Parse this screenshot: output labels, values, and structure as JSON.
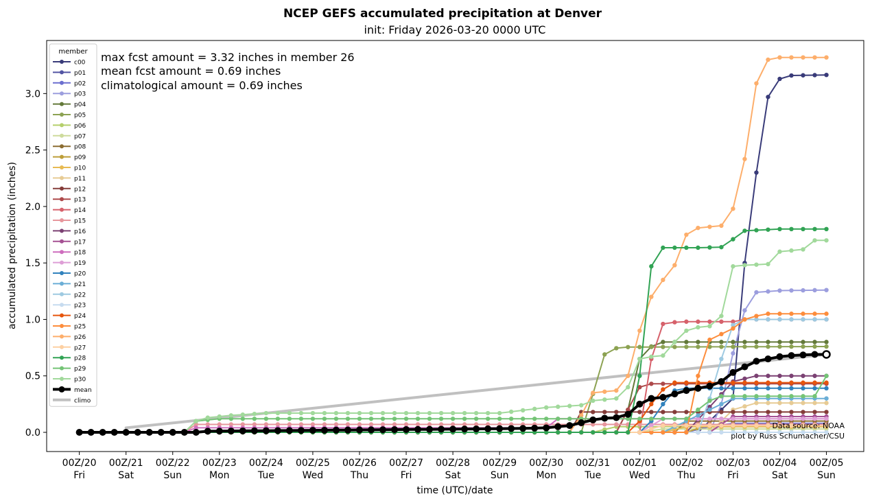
{
  "chart_data": {
    "type": "line",
    "title": "NCEP GEFS accumulated precipitation at Denver",
    "subtitle": "init: Friday 2026-03-20 0000 UTC",
    "xlabel": "time (UTC)/date",
    "ylabel": "accumulated precipitation (inches)",
    "x_unit": "days after 2026-03-20 00Z",
    "xlim": [
      -0.7,
      16.8
    ],
    "ylim": [
      -0.17,
      3.47
    ],
    "x_ticks": [
      {
        "top": "00Z/20",
        "bottom": "Fri"
      },
      {
        "top": "00Z/21",
        "bottom": "Sat"
      },
      {
        "top": "00Z/22",
        "bottom": "Sun"
      },
      {
        "top": "00Z/23",
        "bottom": "Mon"
      },
      {
        "top": "00Z/24",
        "bottom": "Tue"
      },
      {
        "top": "00Z/25",
        "bottom": "Wed"
      },
      {
        "top": "00Z/26",
        "bottom": "Thu"
      },
      {
        "top": "00Z/27",
        "bottom": "Fri"
      },
      {
        "top": "00Z/28",
        "bottom": "Sat"
      },
      {
        "top": "00Z/29",
        "bottom": "Sun"
      },
      {
        "top": "00Z/30",
        "bottom": "Mon"
      },
      {
        "top": "00Z/31",
        "bottom": "Tue"
      },
      {
        "top": "00Z/01",
        "bottom": "Wed"
      },
      {
        "top": "00Z/02",
        "bottom": "Thu"
      },
      {
        "top": "00Z/03",
        "bottom": "Fri"
      },
      {
        "top": "00Z/04",
        "bottom": "Sat"
      },
      {
        "top": "00Z/05",
        "bottom": "Sun"
      }
    ],
    "y_ticks": [
      "0.0",
      "0.5",
      "1.0",
      "1.5",
      "2.0",
      "2.5",
      "3.0"
    ],
    "y_tick_values": [
      0,
      0.5,
      1.0,
      1.5,
      2.0,
      2.5,
      3.0
    ],
    "step_days": 0.25,
    "legend": {
      "title": "member",
      "placement": "upper left"
    },
    "annotations": [
      "max fcst amount = 3.32 inches in member 26",
      "mean fcst amount = 0.69 inches",
      "climatological amount = 0.69 inches"
    ],
    "credits": [
      "Data source: NOAA",
      "plot by Russ Schumacher/CSU"
    ],
    "series": [
      {
        "name": "c00",
        "color": "#393b79",
        "knots": [
          [
            0,
            0
          ],
          [
            13.25,
            0
          ],
          [
            14,
            0.3
          ],
          [
            14.25,
            1.5
          ],
          [
            14.5,
            2.3
          ],
          [
            14.75,
            2.97
          ],
          [
            15,
            3.13
          ],
          [
            15.25,
            3.16
          ],
          [
            16,
            3.165
          ]
        ]
      },
      {
        "name": "p01",
        "color": "#5254a3",
        "knots": [
          [
            0,
            0
          ],
          [
            12.5,
            0
          ],
          [
            13,
            0.05
          ],
          [
            16,
            0.05
          ]
        ]
      },
      {
        "name": "p02",
        "color": "#6b6ecf",
        "knots": [
          [
            0,
            0
          ],
          [
            13,
            0
          ],
          [
            13.5,
            0.05
          ],
          [
            14,
            0.08
          ],
          [
            16,
            0.08
          ]
        ]
      },
      {
        "name": "p03",
        "color": "#9c9ede",
        "knots": [
          [
            0,
            0
          ],
          [
            13.5,
            0
          ],
          [
            13.75,
            0.25
          ],
          [
            14,
            0.7
          ],
          [
            14.25,
            1.08
          ],
          [
            14.5,
            1.24
          ],
          [
            15,
            1.255
          ],
          [
            16,
            1.26
          ]
        ]
      },
      {
        "name": "p04",
        "color": "#637939",
        "knots": [
          [
            0,
            0
          ],
          [
            11.5,
            0
          ],
          [
            11.75,
            0.2
          ],
          [
            12,
            0.65
          ],
          [
            12.25,
            0.76
          ],
          [
            12.5,
            0.8
          ],
          [
            16,
            0.8
          ]
        ]
      },
      {
        "name": "p05",
        "color": "#8ca252",
        "knots": [
          [
            0,
            0
          ],
          [
            10.75,
            0
          ],
          [
            11,
            0.34
          ],
          [
            11.25,
            0.69
          ],
          [
            11.5,
            0.745
          ],
          [
            11.75,
            0.755
          ],
          [
            16,
            0.76
          ]
        ]
      },
      {
        "name": "p06",
        "color": "#b5cf6b",
        "knots": [
          [
            0,
            0
          ],
          [
            11,
            0
          ],
          [
            11.5,
            0.05
          ],
          [
            16,
            0.05
          ]
        ]
      },
      {
        "name": "p07",
        "color": "#cedb9c",
        "knots": [
          [
            0,
            0
          ],
          [
            12,
            0
          ],
          [
            12.5,
            0.03
          ],
          [
            16,
            0.03
          ]
        ]
      },
      {
        "name": "p08",
        "color": "#8c6d31",
        "knots": [
          [
            0,
            0
          ],
          [
            12.75,
            0
          ],
          [
            13,
            0.1
          ],
          [
            16,
            0.1
          ]
        ]
      },
      {
        "name": "p09",
        "color": "#bd9e39",
        "knots": [
          [
            0,
            0
          ],
          [
            13,
            0
          ],
          [
            13.5,
            0.07
          ],
          [
            16,
            0.07
          ]
        ]
      },
      {
        "name": "p10",
        "color": "#e7ba52",
        "knots": [
          [
            0,
            0
          ],
          [
            12.5,
            0
          ],
          [
            13,
            0.05
          ],
          [
            16,
            0.05
          ]
        ]
      },
      {
        "name": "p11",
        "color": "#e7cb94",
        "knots": [
          [
            0,
            0
          ],
          [
            13.5,
            0
          ],
          [
            14,
            0.2
          ],
          [
            14.5,
            0.26
          ],
          [
            16,
            0.26
          ]
        ]
      },
      {
        "name": "p12",
        "color": "#843c39",
        "knots": [
          [
            0,
            0
          ],
          [
            10.5,
            0
          ],
          [
            10.75,
            0.18
          ],
          [
            16,
            0.18
          ]
        ]
      },
      {
        "name": "p13",
        "color": "#ad494a",
        "knots": [
          [
            0,
            0
          ],
          [
            11.5,
            0
          ],
          [
            12,
            0.4
          ],
          [
            12.25,
            0.43
          ],
          [
            16,
            0.43
          ]
        ]
      },
      {
        "name": "p14",
        "color": "#d6616b",
        "knots": [
          [
            0,
            0
          ],
          [
            12,
            0
          ],
          [
            12.25,
            0.65
          ],
          [
            12.5,
            0.96
          ],
          [
            12.75,
            0.975
          ],
          [
            13,
            0.98
          ],
          [
            14,
            0.98
          ],
          [
            14.25,
            1.0
          ],
          [
            16,
            1.0
          ]
        ]
      },
      {
        "name": "p15",
        "color": "#e7969c",
        "knots": [
          [
            0,
            0
          ],
          [
            2.25,
            0
          ],
          [
            2.5,
            0.07
          ],
          [
            16,
            0.07
          ]
        ]
      },
      {
        "name": "p16",
        "color": "#7b4173",
        "knots": [
          [
            0,
            0
          ],
          [
            13,
            0
          ],
          [
            14,
            0.45
          ],
          [
            14.5,
            0.5
          ],
          [
            16,
            0.5
          ]
        ]
      },
      {
        "name": "p17",
        "color": "#a55194",
        "knots": [
          [
            0,
            0
          ],
          [
            13.5,
            0
          ],
          [
            14,
            0.14
          ],
          [
            16,
            0.14
          ]
        ]
      },
      {
        "name": "p18",
        "color": "#ce6dbd",
        "knots": [
          [
            0,
            0
          ],
          [
            2.25,
            0
          ],
          [
            2.5,
            0.04
          ],
          [
            10,
            0.04
          ],
          [
            10.25,
            0.12
          ],
          [
            16,
            0.12
          ]
        ]
      },
      {
        "name": "p19",
        "color": "#de9ed6",
        "knots": [
          [
            0,
            0
          ],
          [
            12,
            0
          ],
          [
            12.5,
            0.12
          ],
          [
            16,
            0.12
          ]
        ]
      },
      {
        "name": "p20",
        "color": "#3182bd",
        "knots": [
          [
            0,
            0
          ],
          [
            12,
            0
          ],
          [
            12.25,
            0.1
          ],
          [
            12.5,
            0.25
          ],
          [
            12.75,
            0.37
          ],
          [
            13,
            0.39
          ],
          [
            14,
            0.39
          ],
          [
            16,
            0.39
          ]
        ]
      },
      {
        "name": "p21",
        "color": "#6baed6",
        "knots": [
          [
            0,
            0
          ],
          [
            12.5,
            0
          ],
          [
            13,
            0.1
          ],
          [
            13.5,
            0.2
          ],
          [
            14,
            0.3
          ],
          [
            16,
            0.3
          ]
        ]
      },
      {
        "name": "p22",
        "color": "#9ecae1",
        "knots": [
          [
            0,
            0
          ],
          [
            13.25,
            0
          ],
          [
            13.5,
            0.3
          ],
          [
            13.75,
            0.65
          ],
          [
            14,
            0.95
          ],
          [
            14.25,
            1.0
          ],
          [
            16,
            1.0
          ]
        ]
      },
      {
        "name": "p23",
        "color": "#c6dbef",
        "knots": [
          [
            0,
            0
          ],
          [
            16,
            0
          ]
        ]
      },
      {
        "name": "p24",
        "color": "#e6550d",
        "knots": [
          [
            0,
            0
          ],
          [
            11.75,
            0
          ],
          [
            12,
            0.1
          ],
          [
            12.25,
            0.25
          ],
          [
            12.5,
            0.38
          ],
          [
            12.75,
            0.44
          ],
          [
            16,
            0.44
          ]
        ]
      },
      {
        "name": "p25",
        "color": "#fd8d3c",
        "knots": [
          [
            0,
            0
          ],
          [
            13,
            0
          ],
          [
            13.25,
            0.5
          ],
          [
            13.5,
            0.82
          ],
          [
            14,
            0.92
          ],
          [
            14.25,
            1.0
          ],
          [
            14.5,
            1.03
          ],
          [
            14.75,
            1.05
          ],
          [
            16,
            1.05
          ]
        ]
      },
      {
        "name": "p26",
        "color": "#fdae6b",
        "knots": [
          [
            0,
            0
          ],
          [
            10.5,
            0
          ],
          [
            10.75,
            0.15
          ],
          [
            11,
            0.35
          ],
          [
            11.5,
            0.37
          ],
          [
            11.75,
            0.5
          ],
          [
            12,
            0.9
          ],
          [
            12.25,
            1.2
          ],
          [
            12.5,
            1.35
          ],
          [
            12.75,
            1.48
          ],
          [
            13,
            1.75
          ],
          [
            13.25,
            1.81
          ],
          [
            13.5,
            1.82
          ],
          [
            13.75,
            1.83
          ],
          [
            14,
            1.98
          ],
          [
            14.25,
            2.42
          ],
          [
            14.5,
            3.09
          ],
          [
            14.75,
            3.3
          ],
          [
            15,
            3.32
          ],
          [
            16,
            3.32
          ]
        ]
      },
      {
        "name": "p27",
        "color": "#fdd0a2",
        "knots": [
          [
            0,
            0
          ],
          [
            12,
            0
          ],
          [
            12.5,
            0.06
          ],
          [
            16,
            0.06
          ]
        ]
      },
      {
        "name": "p28",
        "color": "#31a354",
        "knots": [
          [
            0,
            0
          ],
          [
            11.75,
            0
          ],
          [
            12,
            0.5
          ],
          [
            12.25,
            1.47
          ],
          [
            12.5,
            1.635
          ],
          [
            13.25,
            1.635
          ],
          [
            13.75,
            1.64
          ],
          [
            14,
            1.71
          ],
          [
            14.25,
            1.785
          ],
          [
            14.5,
            1.79
          ],
          [
            14.75,
            1.795
          ],
          [
            15,
            1.8
          ],
          [
            16,
            1.8
          ]
        ]
      },
      {
        "name": "p29",
        "color": "#74c476",
        "knots": [
          [
            0,
            0
          ],
          [
            2.25,
            0
          ],
          [
            2.5,
            0.1
          ],
          [
            3,
            0.12
          ],
          [
            13,
            0.12
          ],
          [
            13.5,
            0.28
          ],
          [
            13.75,
            0.32
          ],
          [
            15.75,
            0.32
          ],
          [
            16,
            0.5
          ]
        ]
      },
      {
        "name": "p30",
        "color": "#a1d99b",
        "knots": [
          [
            0,
            0
          ],
          [
            2.25,
            0
          ],
          [
            2.5,
            0.1
          ],
          [
            2.75,
            0.13
          ],
          [
            3.25,
            0.15
          ],
          [
            4,
            0.17
          ],
          [
            9,
            0.17
          ],
          [
            10,
            0.22
          ],
          [
            10.75,
            0.24
          ],
          [
            11,
            0.28
          ],
          [
            11.5,
            0.3
          ],
          [
            11.75,
            0.4
          ],
          [
            12,
            0.65
          ],
          [
            12.25,
            0.67
          ],
          [
            12.5,
            0.68
          ],
          [
            12.75,
            0.8
          ],
          [
            13,
            0.9
          ],
          [
            13.25,
            0.93
          ],
          [
            13.5,
            0.94
          ],
          [
            13.75,
            1.03
          ],
          [
            14,
            1.47
          ],
          [
            14.25,
            1.48
          ],
          [
            14.75,
            1.49
          ],
          [
            15,
            1.6
          ],
          [
            15.25,
            1.61
          ],
          [
            15.5,
            1.62
          ],
          [
            15.75,
            1.7
          ],
          [
            16,
            1.7
          ]
        ]
      }
    ],
    "mean": {
      "name": "mean",
      "color": "#000000",
      "knots": [
        [
          0,
          0
        ],
        [
          2.5,
          0
        ],
        [
          2.75,
          0.01
        ],
        [
          8.5,
          0.03
        ],
        [
          9.5,
          0.035
        ],
        [
          10,
          0.04
        ],
        [
          10.5,
          0.06
        ],
        [
          11,
          0.11
        ],
        [
          11.25,
          0.125
        ],
        [
          11.5,
          0.13
        ],
        [
          11.75,
          0.16
        ],
        [
          12,
          0.25
        ],
        [
          12.25,
          0.3
        ],
        [
          12.5,
          0.31
        ],
        [
          12.75,
          0.34
        ],
        [
          13,
          0.37
        ],
        [
          13.25,
          0.39
        ],
        [
          13.5,
          0.41
        ],
        [
          13.75,
          0.45
        ],
        [
          14,
          0.53
        ],
        [
          14.25,
          0.58
        ],
        [
          14.5,
          0.63
        ],
        [
          14.75,
          0.65
        ],
        [
          15,
          0.67
        ],
        [
          15.25,
          0.68
        ],
        [
          15.5,
          0.685
        ],
        [
          15.75,
          0.69
        ],
        [
          16,
          0.69
        ]
      ]
    },
    "climo": {
      "name": "climo",
      "color": "#c0c0c0",
      "x": [
        1,
        16
      ],
      "y": [
        0.04,
        0.69
      ]
    }
  }
}
